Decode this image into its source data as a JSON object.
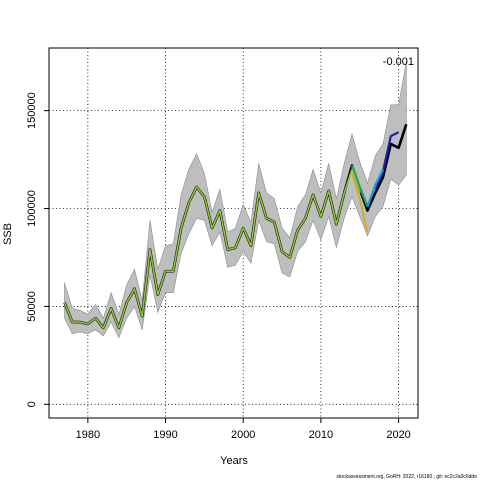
{
  "chart_data": {
    "type": "line",
    "xlabel": "Years",
    "ylabel": "SSB",
    "xlim": [
      1975,
      2022.5
    ],
    "ylim": [
      -7000,
      182000
    ],
    "x_ticks": [
      1980,
      1990,
      2000,
      2010,
      2020
    ],
    "y_ticks": [
      0,
      50000,
      100000,
      150000
    ],
    "grid": true,
    "annotation": "-0.001",
    "footer": "stockassessment.org, GoRH: 2022, r16180 , git: ec2c2a0c6dde",
    "x": [
      1977,
      1978,
      1979,
      1980,
      1981,
      1982,
      1983,
      1984,
      1985,
      1986,
      1987,
      1988,
      1989,
      1990,
      1991,
      1992,
      1993,
      1994,
      1995,
      1996,
      1997,
      1998,
      1999,
      2000,
      2001,
      2002,
      2003,
      2004,
      2005,
      2006,
      2007,
      2008,
      2009,
      2010,
      2011,
      2012,
      2013,
      2014,
      2015,
      2016,
      2017,
      2018,
      2019,
      2020,
      2021
    ],
    "band": {
      "lower": [
        44000,
        36000,
        37000,
        36000,
        38000,
        35000,
        42000,
        34000,
        44000,
        50000,
        38000,
        66000,
        47000,
        57000,
        57000,
        77000,
        87000,
        95000,
        94000,
        81000,
        88000,
        70000,
        71000,
        78000,
        72000,
        94000,
        83000,
        82000,
        67000,
        65000,
        78000,
        83000,
        94000,
        84000,
        96000,
        80000,
        95000,
        106000,
        96000,
        86000,
        96000,
        101000,
        115000,
        112000,
        117000
      ],
      "upper": [
        62000,
        49000,
        48000,
        46000,
        51000,
        44000,
        57000,
        46000,
        61000,
        69000,
        53000,
        94000,
        69000,
        81000,
        82000,
        107000,
        120000,
        128000,
        118000,
        98000,
        110000,
        88000,
        90000,
        102000,
        93000,
        123000,
        108000,
        105000,
        90000,
        85000,
        101000,
        107000,
        120000,
        108000,
        123000,
        105000,
        123000,
        138000,
        124000,
        113000,
        127000,
        133000,
        153000,
        153000,
        175000
      ]
    },
    "series": [
      {
        "name": "",
        "color": "#000000",
        "values": [
          52000,
          42000,
          42000,
          41000,
          44000,
          39000,
          49000,
          39000,
          52000,
          59000,
          45000,
          79000,
          56000,
          68000,
          68000,
          90000,
          103000,
          111000,
          106000,
          90000,
          99000,
          79000,
          80000,
          90000,
          81000,
          108000,
          95000,
          93000,
          78000,
          75000,
          89000,
          95000,
          107000,
          96000,
          109000,
          92000,
          108000,
          122000,
          110000,
          99000,
          108000,
          116000,
          133000,
          131000,
          143000
        ]
      },
      {
        "name": "",
        "color": "#2020b0",
        "values": [
          null,
          null,
          null,
          null,
          null,
          null,
          null,
          null,
          null,
          null,
          null,
          null,
          null,
          null,
          null,
          null,
          null,
          null,
          null,
          null,
          null,
          null,
          null,
          null,
          null,
          null,
          null,
          null,
          null,
          null,
          null,
          null,
          null,
          null,
          null,
          null,
          null,
          null,
          null,
          null,
          110000,
          119000,
          137000,
          139000,
          null
        ]
      },
      {
        "name": "",
        "color": "#1a9ed8",
        "values": [
          null,
          null,
          null,
          null,
          null,
          null,
          null,
          null,
          null,
          null,
          null,
          null,
          null,
          null,
          null,
          null,
          null,
          null,
          null,
          null,
          null,
          null,
          null,
          null,
          null,
          null,
          null,
          null,
          null,
          null,
          null,
          null,
          null,
          null,
          null,
          null,
          null,
          null,
          null,
          101000,
          112000,
          120000,
          null,
          null,
          null
        ]
      },
      {
        "name": "",
        "color": "#1f9e6e",
        "values": [
          null,
          null,
          null,
          null,
          null,
          null,
          null,
          null,
          null,
          null,
          null,
          null,
          null,
          null,
          null,
          null,
          null,
          null,
          null,
          null,
          null,
          null,
          null,
          null,
          null,
          null,
          null,
          null,
          null,
          null,
          null,
          null,
          null,
          null,
          null,
          null,
          null,
          122000,
          111000,
          101000,
          null,
          null,
          null,
          null,
          null
        ]
      },
      {
        "name": "",
        "color": "#8fc93a",
        "values": [
          52000,
          42000,
          42000,
          41000,
          44000,
          39000,
          49000,
          39000,
          52000,
          59000,
          45000,
          79000,
          56000,
          68000,
          68000,
          90000,
          103000,
          111000,
          106000,
          90000,
          99000,
          79000,
          80000,
          90000,
          81000,
          108000,
          95000,
          93000,
          78000,
          75000,
          89000,
          95000,
          107000,
          96000,
          109000,
          92000,
          108000,
          120000,
          108000,
          null,
          null,
          null,
          null,
          null,
          null
        ]
      },
      {
        "name": "",
        "color": "#d6a817",
        "values": [
          null,
          null,
          null,
          null,
          null,
          null,
          null,
          null,
          null,
          null,
          null,
          null,
          null,
          null,
          null,
          null,
          null,
          null,
          null,
          null,
          null,
          null,
          null,
          null,
          null,
          null,
          null,
          null,
          null,
          null,
          null,
          null,
          null,
          null,
          null,
          null,
          null,
          118000,
          105000,
          88000,
          null,
          null,
          null,
          null,
          null
        ]
      }
    ]
  }
}
